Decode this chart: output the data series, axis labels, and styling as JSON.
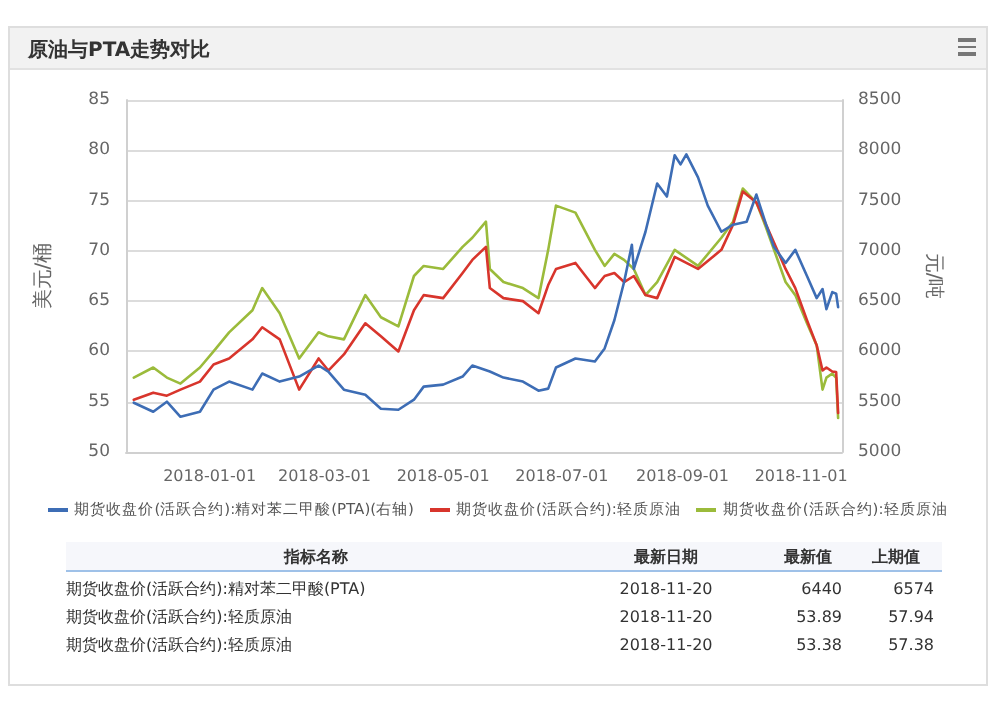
{
  "chart_data": {
    "type": "line",
    "title": "原油与PTA走势对比",
    "ylabel": "美元/桶",
    "y2label": "元/吨",
    "xlim": [
      "2017-11-19",
      "2018-11-22"
    ],
    "xticks": [
      "2018-01-01",
      "2018-03-01",
      "2018-05-01",
      "2018-07-01",
      "2018-09-01",
      "2018-11-01"
    ],
    "ylim": [
      50,
      85
    ],
    "yticks": [
      50,
      55,
      60,
      65,
      70,
      75,
      80,
      85
    ],
    "y2lim": [
      5000,
      8500
    ],
    "y2ticks": [
      5000,
      5500,
      6000,
      6500,
      7000,
      7500,
      8000,
      8500
    ],
    "grid": "y",
    "legend": "bottom",
    "marker": "none",
    "line_style": "solid",
    "series": [
      {
        "name": "期货收盘价(活跃合约):精对苯二甲酸(PTA)(右轴)",
        "color": "#3d6db5",
        "axis": "y2",
        "x": [
          "2017-11-23",
          "2017-12-03",
          "2017-12-10",
          "2017-12-17",
          "2017-12-27",
          "2018-01-03",
          "2018-01-11",
          "2018-01-23",
          "2018-01-28",
          "2018-02-06",
          "2018-02-16",
          "2018-02-26",
          "2018-03-03",
          "2018-03-11",
          "2018-03-22",
          "2018-03-30",
          "2018-04-08",
          "2018-04-16",
          "2018-04-21",
          "2018-05-01",
          "2018-05-11",
          "2018-05-16",
          "2018-05-25",
          "2018-06-01",
          "2018-06-11",
          "2018-06-19",
          "2018-06-24",
          "2018-06-28",
          "2018-07-08",
          "2018-07-18",
          "2018-07-23",
          "2018-07-28",
          "2018-08-02",
          "2018-08-06",
          "2018-08-07",
          "2018-08-13",
          "2018-08-19",
          "2018-08-24",
          "2018-08-28",
          "2018-08-31",
          "2018-09-03",
          "2018-09-09",
          "2018-09-14",
          "2018-09-21",
          "2018-09-27",
          "2018-10-04",
          "2018-10-09",
          "2018-10-14",
          "2018-10-18",
          "2018-10-24",
          "2018-10-29",
          "2018-11-04",
          "2018-11-09",
          "2018-11-12",
          "2018-11-14",
          "2018-11-17",
          "2018-11-19",
          "2018-11-20"
        ],
        "values": [
          5490,
          5400,
          5500,
          5350,
          5400,
          5620,
          5700,
          5620,
          5780,
          5700,
          5750,
          5860,
          5800,
          5620,
          5570,
          5430,
          5420,
          5520,
          5650,
          5670,
          5750,
          5860,
          5800,
          5740,
          5700,
          5610,
          5630,
          5840,
          5930,
          5900,
          6030,
          6310,
          6690,
          7060,
          6820,
          7190,
          7670,
          7540,
          7950,
          7860,
          7960,
          7730,
          7450,
          7190,
          7260,
          7290,
          7560,
          7260,
          7040,
          6880,
          7010,
          6750,
          6530,
          6620,
          6420,
          6590,
          6574,
          6440
        ]
      },
      {
        "name": "期货收盘价(活跃合约):轻质原油",
        "color": "#d8352c",
        "x": [
          "2017-11-23",
          "2017-12-03",
          "2017-12-10",
          "2017-12-17",
          "2017-12-27",
          "2018-01-03",
          "2018-01-11",
          "2018-01-23",
          "2018-01-28",
          "2018-02-06",
          "2018-02-16",
          "2018-02-26",
          "2018-03-03",
          "2018-03-11",
          "2018-03-22",
          "2018-03-30",
          "2018-04-08",
          "2018-04-16",
          "2018-04-21",
          "2018-05-01",
          "2018-05-11",
          "2018-05-16",
          "2018-05-23",
          "2018-05-25",
          "2018-06-01",
          "2018-06-11",
          "2018-06-19",
          "2018-06-24",
          "2018-06-28",
          "2018-07-08",
          "2018-07-18",
          "2018-07-23",
          "2018-07-28",
          "2018-08-02",
          "2018-08-07",
          "2018-08-13",
          "2018-08-19",
          "2018-08-28",
          "2018-09-09",
          "2018-09-21",
          "2018-09-27",
          "2018-10-02",
          "2018-10-09",
          "2018-10-14",
          "2018-10-24",
          "2018-10-29",
          "2018-11-04",
          "2018-11-09",
          "2018-11-12",
          "2018-11-14",
          "2018-11-17",
          "2018-11-19",
          "2018-11-20"
        ],
        "values": [
          55.2,
          55.9,
          55.6,
          56.2,
          57.0,
          58.7,
          59.3,
          61.2,
          62.4,
          61.2,
          56.2,
          59.3,
          58.1,
          59.7,
          62.8,
          61.5,
          60.0,
          64.1,
          65.6,
          65.3,
          67.8,
          69.1,
          70.4,
          66.3,
          65.3,
          65.0,
          63.8,
          66.6,
          68.2,
          68.8,
          66.3,
          67.5,
          67.8,
          66.9,
          67.5,
          65.6,
          65.3,
          69.4,
          68.2,
          70.1,
          72.6,
          75.9,
          74.8,
          72.6,
          68.2,
          66.3,
          63.1,
          60.6,
          58.1,
          58.4,
          58.0,
          57.94,
          53.89
        ]
      },
      {
        "name": "期货收盘价(活跃合约):轻质原油",
        "color": "#9bbb3b",
        "x": [
          "2017-11-23",
          "2017-12-03",
          "2017-12-10",
          "2017-12-17",
          "2017-12-27",
          "2018-01-03",
          "2018-01-11",
          "2018-01-23",
          "2018-01-28",
          "2018-02-06",
          "2018-02-16",
          "2018-02-26",
          "2018-03-03",
          "2018-03-11",
          "2018-03-22",
          "2018-03-30",
          "2018-04-08",
          "2018-04-16",
          "2018-04-21",
          "2018-05-01",
          "2018-05-11",
          "2018-05-16",
          "2018-05-23",
          "2018-05-25",
          "2018-06-01",
          "2018-06-11",
          "2018-06-19",
          "2018-06-24",
          "2018-06-28",
          "2018-07-08",
          "2018-07-18",
          "2018-07-23",
          "2018-07-28",
          "2018-08-02",
          "2018-08-07",
          "2018-08-13",
          "2018-08-19",
          "2018-08-28",
          "2018-09-09",
          "2018-09-21",
          "2018-09-27",
          "2018-10-02",
          "2018-10-09",
          "2018-10-14",
          "2018-10-24",
          "2018-10-29",
          "2018-11-04",
          "2018-11-09",
          "2018-11-12",
          "2018-11-14",
          "2018-11-17",
          "2018-11-19",
          "2018-11-20"
        ],
        "values": [
          57.4,
          58.4,
          57.4,
          56.8,
          58.4,
          60.0,
          61.9,
          64.1,
          66.3,
          63.8,
          59.3,
          61.9,
          61.5,
          61.2,
          65.6,
          63.4,
          62.5,
          67.5,
          68.5,
          68.2,
          70.4,
          71.3,
          72.9,
          68.2,
          66.9,
          66.3,
          65.3,
          70.1,
          74.5,
          73.8,
          70.1,
          68.5,
          69.7,
          69.1,
          68.2,
          65.6,
          66.9,
          70.1,
          68.5,
          71.3,
          72.9,
          76.2,
          74.8,
          72.3,
          66.9,
          65.6,
          62.8,
          60.6,
          56.2,
          57.4,
          57.8,
          57.38,
          53.38
        ]
      }
    ],
    "annotations": [
      "指标名称\t最新日期\t最新值\t上期值",
      "期货收盘价(活跃合约):精对苯二甲酸(PTA)\t2018-11-20\t6440\t6574",
      "期货收盘价(活跃合约):轻质原油\t2018-11-20\t53.89\t57.94",
      "期货收盘价(活跃合约):轻质原油\t2018-11-20\t53.38\t57.38"
    ]
  }
}
